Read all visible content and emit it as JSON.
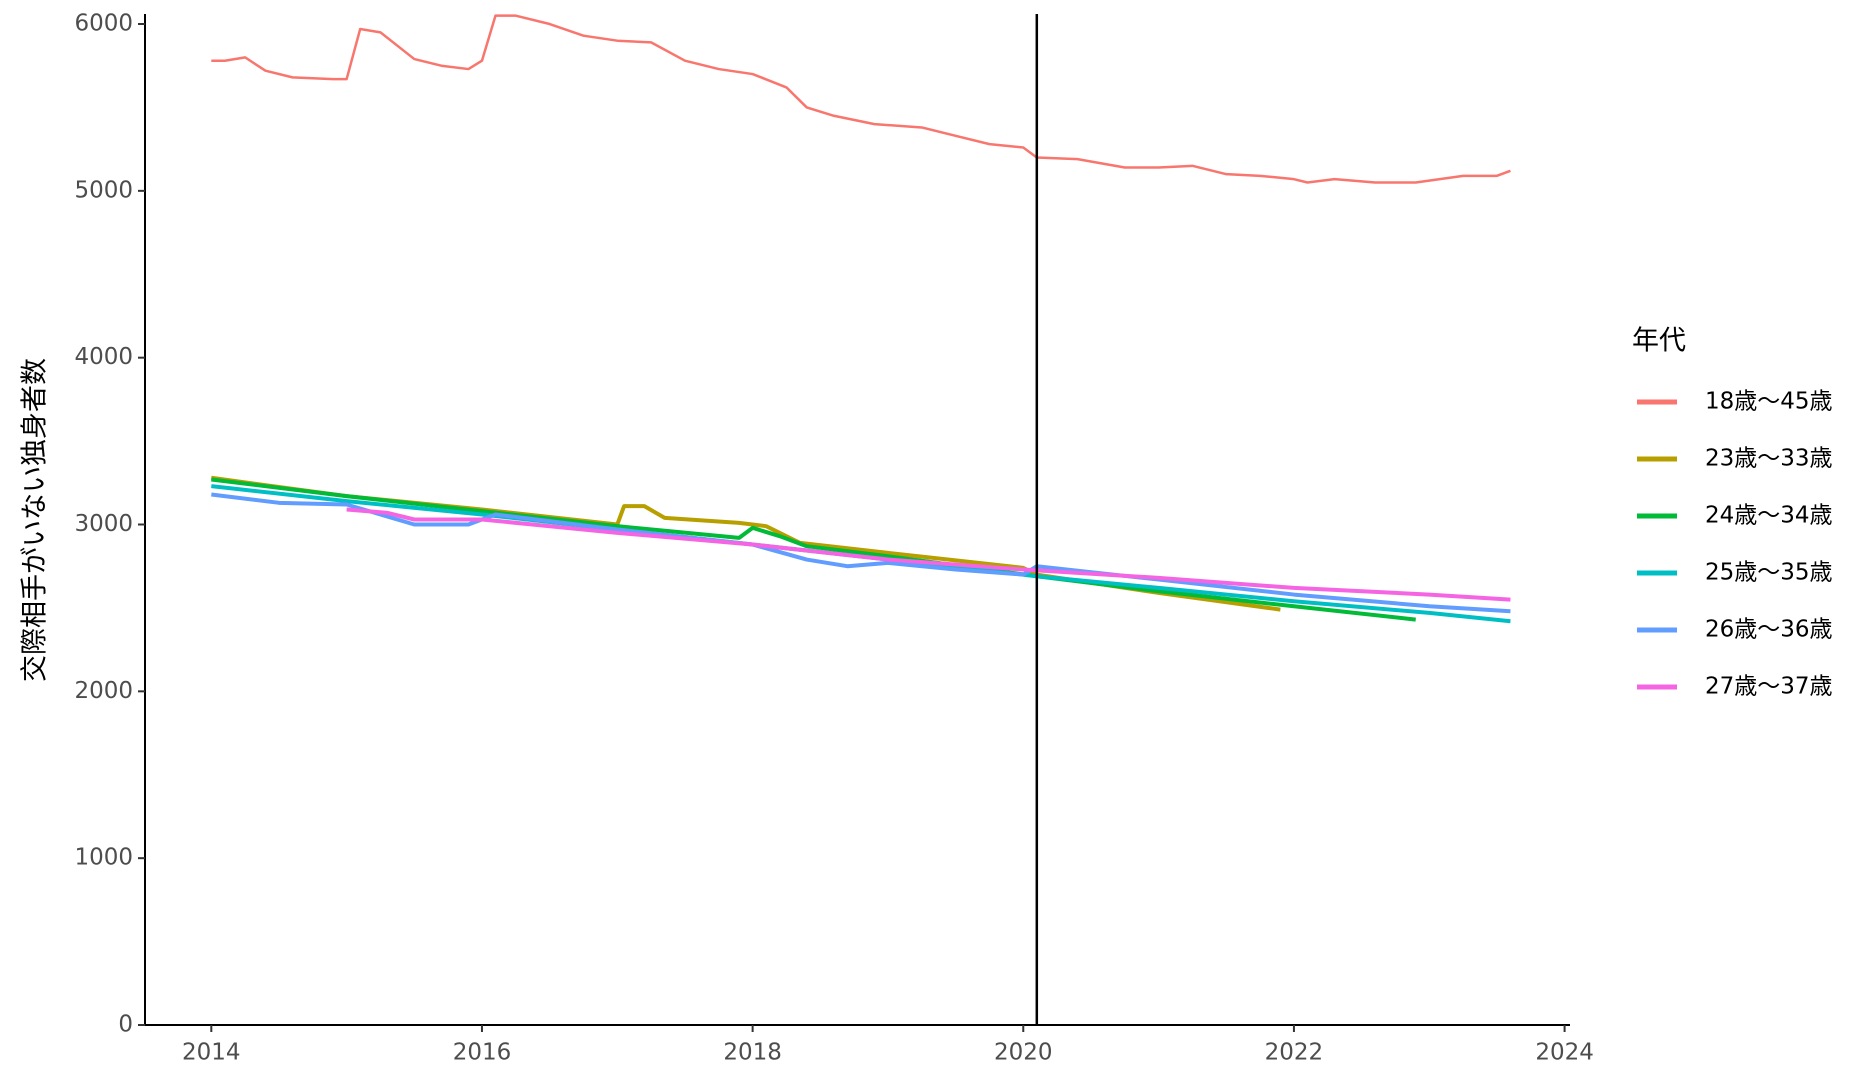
{
  "chart_data": {
    "type": "line",
    "y_label": "交際相手がいない独身者数",
    "legend_title": "年代",
    "xlim": [
      2013.51,
      2024.04
    ],
    "ylim": [
      0,
      6060
    ],
    "xticks": [
      2014,
      2016,
      2018,
      2020,
      2022,
      2024
    ],
    "yticks": [
      0,
      1000,
      2000,
      3000,
      4000,
      5000,
      6000
    ],
    "vline": 2020.1,
    "grid": false,
    "legend": "right",
    "series": [
      {
        "name": "18歳～45歳",
        "color": "#F8766D",
        "x": [
          2014.0,
          2014.1,
          2014.25,
          2014.4,
          2014.6,
          2014.9,
          2015.0,
          2015.1,
          2015.25,
          2015.5,
          2015.7,
          2015.9,
          2016.0,
          2016.1,
          2016.25,
          2016.5,
          2016.75,
          2017.0,
          2017.25,
          2017.5,
          2017.75,
          2018.0,
          2018.25,
          2018.4,
          2018.6,
          2018.9,
          2019.25,
          2019.5,
          2019.75,
          2020.0,
          2020.1,
          2020.4,
          2020.75,
          2021.0,
          2021.25,
          2021.5,
          2021.75,
          2022.0,
          2022.1,
          2022.3,
          2022.6,
          2022.9,
          2023.25,
          2023.5,
          2023.6
        ],
        "values": [
          5780,
          5780,
          5800,
          5720,
          5680,
          5670,
          5670,
          5970,
          5950,
          5790,
          5750,
          5730,
          5780,
          6050,
          6050,
          6000,
          5930,
          5900,
          5890,
          5780,
          5730,
          5700,
          5620,
          5500,
          5450,
          5400,
          5380,
          5330,
          5280,
          5260,
          5200,
          5190,
          5140,
          5140,
          5150,
          5100,
          5090,
          5070,
          5050,
          5070,
          5050,
          5050,
          5090,
          5090,
          5120
        ]
      },
      {
        "name": "23歳～33歳",
        "color": "#B79F00",
        "x": [
          2014.0,
          2015.0,
          2016.0,
          2017.0,
          2017.05,
          2017.2,
          2017.35,
          2017.9,
          2018.1,
          2018.35,
          2019.0,
          2020.0,
          2020.1,
          2021.0,
          2021.9
        ],
        "values": [
          3280,
          3170,
          3090,
          3000,
          3110,
          3110,
          3040,
          3010,
          2990,
          2890,
          2830,
          2740,
          2700,
          2590,
          2490
        ]
      },
      {
        "name": "24歳～34歳",
        "color": "#00BA38",
        "x": [
          2014.0,
          2015.0,
          2016.0,
          2017.0,
          2017.9,
          2018.0,
          2018.2,
          2018.4,
          2019.0,
          2020.1,
          2021.0,
          2022.0,
          2022.9
        ],
        "values": [
          3270,
          3170,
          3080,
          2990,
          2920,
          2980,
          2930,
          2870,
          2810,
          2690,
          2600,
          2510,
          2430
        ]
      },
      {
        "name": "25歳～35歳",
        "color": "#00BFC4",
        "x": [
          2014.0,
          2015.0,
          2016.0,
          2017.0,
          2018.0,
          2019.0,
          2020.1,
          2021.0,
          2022.0,
          2023.0,
          2023.6
        ],
        "values": [
          3230,
          3140,
          3060,
          2970,
          2880,
          2790,
          2690,
          2620,
          2540,
          2470,
          2420
        ]
      },
      {
        "name": "26歳～36歳",
        "color": "#619CFF",
        "x": [
          2014.0,
          2014.5,
          2015.0,
          2015.5,
          2015.9,
          2016.1,
          2017.0,
          2018.0,
          2018.4,
          2018.7,
          2019.0,
          2019.5,
          2020.0,
          2020.1,
          2021.0,
          2022.0,
          2023.0,
          2023.6
        ],
        "values": [
          3180,
          3130,
          3120,
          3000,
          3000,
          3060,
          2970,
          2880,
          2790,
          2750,
          2770,
          2730,
          2700,
          2750,
          2670,
          2580,
          2510,
          2480
        ]
      },
      {
        "name": "27歳～37歳",
        "color": "#F564E3",
        "x": [
          2015.0,
          2015.3,
          2015.5,
          2016.0,
          2017.0,
          2018.0,
          2019.0,
          2020.0,
          2021.0,
          2022.0,
          2023.0,
          2023.6
        ],
        "values": [
          3090,
          3070,
          3030,
          3030,
          2950,
          2880,
          2790,
          2730,
          2680,
          2620,
          2580,
          2550
        ]
      }
    ]
  }
}
